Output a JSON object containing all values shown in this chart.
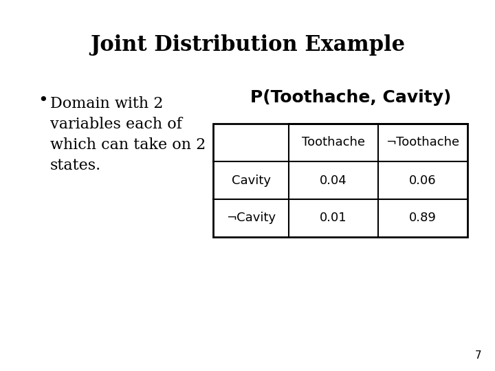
{
  "title": "Joint Distribution Example",
  "bullet_lines": [
    "Domain with 2",
    "variables each of",
    "which can take on 2",
    "states."
  ],
  "table_title": "P(Toothache, Cavity)",
  "col_headers": [
    "Toothache",
    "¬Toothache"
  ],
  "row_headers": [
    "Cavity",
    "¬Cavity"
  ],
  "table_data": [
    [
      0.04,
      0.06
    ],
    [
      0.01,
      0.89
    ]
  ],
  "page_number": "7",
  "bg_color": "#ffffff",
  "text_color": "#000000",
  "title_fontsize": 22,
  "bullet_fontsize": 16,
  "table_title_fontsize": 18,
  "table_fontsize": 13,
  "page_fontsize": 11
}
